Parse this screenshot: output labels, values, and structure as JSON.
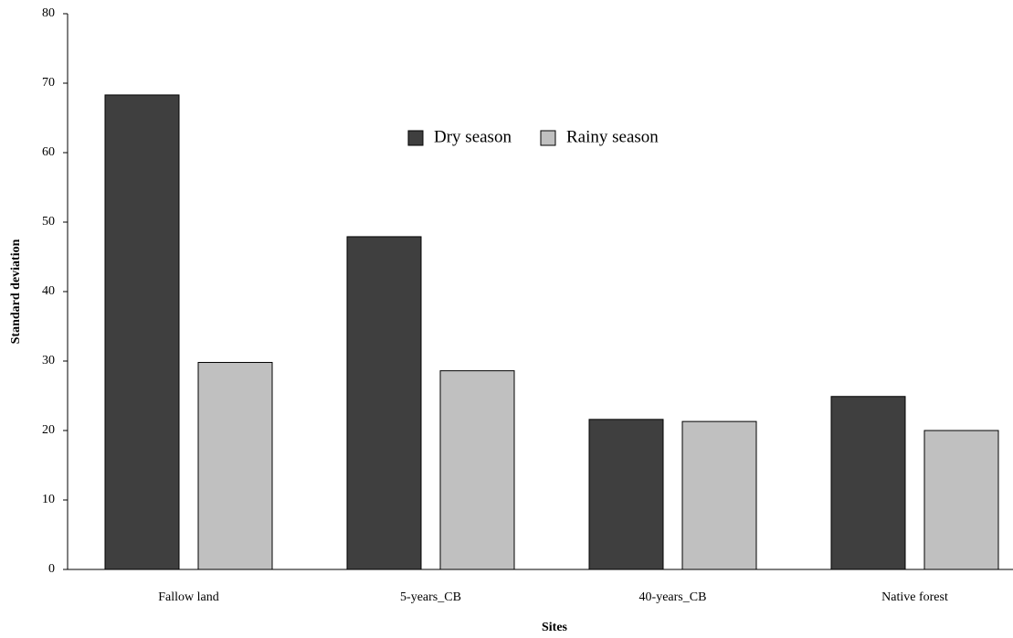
{
  "chart_data": {
    "type": "bar",
    "x_label": "Sites",
    "y_label": "Standard deviation",
    "categories": [
      "Fallow land",
      "5-years_CB",
      "40-years_CB",
      "Native forest"
    ],
    "series": [
      {
        "name": "Dry season",
        "color": "#3f3f3f",
        "values": [
          68.3,
          47.9,
          21.6,
          24.9
        ]
      },
      {
        "name": "Rainy season",
        "color": "#c0c0c0",
        "values": [
          29.8,
          28.6,
          21.3,
          20.0
        ]
      }
    ],
    "ylim": [
      0,
      80
    ],
    "yticks": [
      0,
      10,
      20,
      30,
      40,
      50,
      60,
      70,
      80
    ]
  }
}
